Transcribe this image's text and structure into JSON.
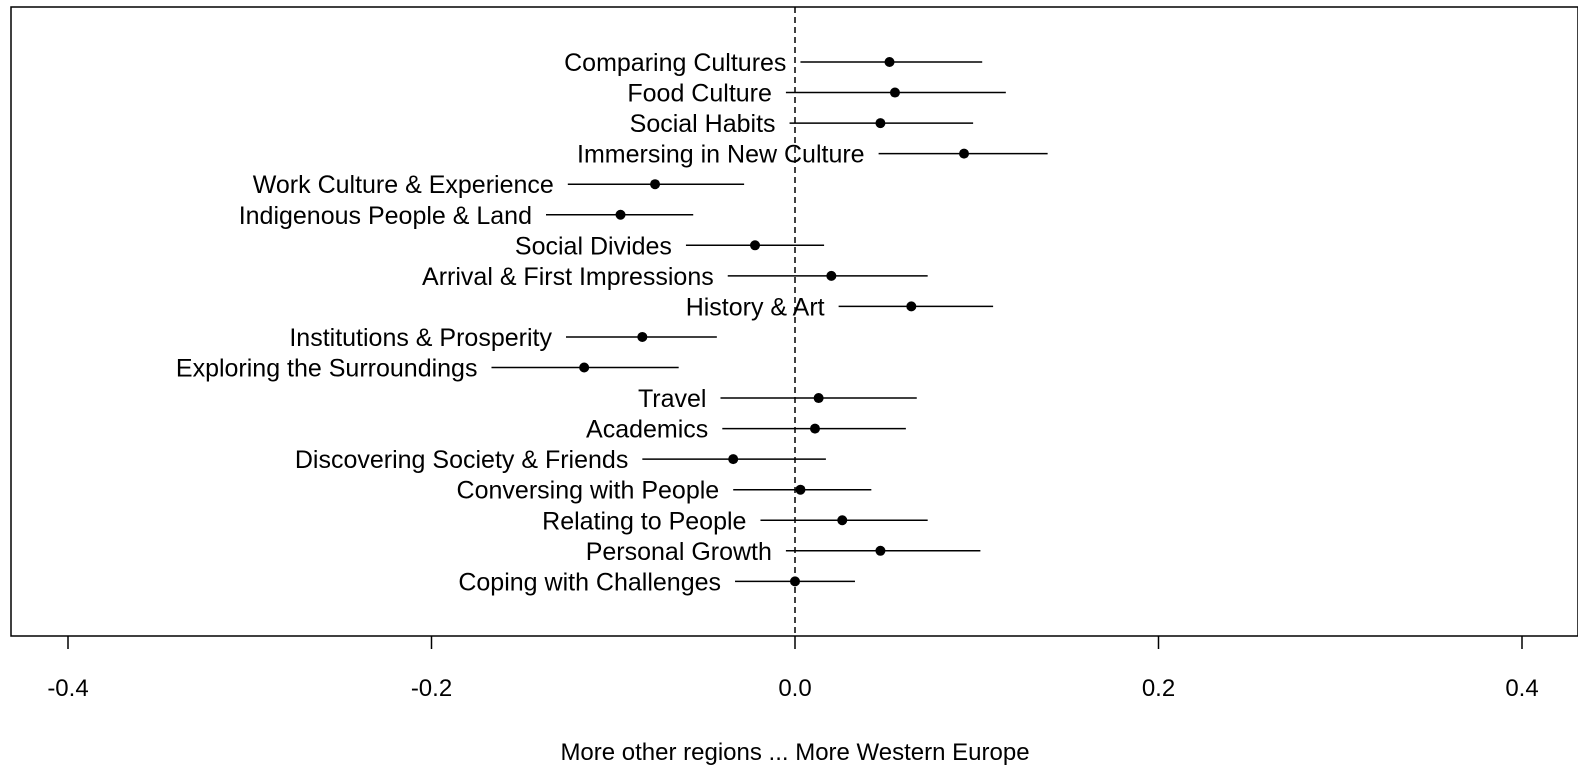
{
  "chart_data": {
    "type": "scatter",
    "subtype": "forest-plot",
    "title": "",
    "xlabel": "More other regions ... More Western Europe",
    "ylabel": "",
    "xlim": [
      -0.4,
      0.4
    ],
    "x_ticks": [
      -0.4,
      -0.2,
      0.0,
      0.2,
      0.4
    ],
    "x_tick_labels": [
      "-0.4",
      "-0.2",
      "0.0",
      "0.2",
      "0.4"
    ],
    "reference_line": 0.0,
    "reference_line_style": "dashed",
    "grid": false,
    "legend": "none",
    "colors": {
      "marks": "#000000",
      "background": "#ffffff"
    },
    "points": [
      {
        "label": "Comparing Cultures",
        "estimate": 0.052,
        "lower": 0.003,
        "upper": 0.103
      },
      {
        "label": "Food Culture",
        "estimate": 0.055,
        "lower": -0.005,
        "upper": 0.116
      },
      {
        "label": "Social Habits",
        "estimate": 0.047,
        "lower": -0.003,
        "upper": 0.098
      },
      {
        "label": "Immersing in New Culture",
        "estimate": 0.093,
        "lower": 0.046,
        "upper": 0.139
      },
      {
        "label": "Work Culture & Experience",
        "estimate": -0.077,
        "lower": -0.125,
        "upper": -0.028
      },
      {
        "label": "Indigenous People & Land",
        "estimate": -0.096,
        "lower": -0.137,
        "upper": -0.056
      },
      {
        "label": "Social Divides",
        "estimate": -0.022,
        "lower": -0.06,
        "upper": 0.016
      },
      {
        "label": "Arrival & First Impressions",
        "estimate": 0.02,
        "lower": -0.037,
        "upper": 0.073
      },
      {
        "label": "History & Art",
        "estimate": 0.064,
        "lower": 0.024,
        "upper": 0.109
      },
      {
        "label": "Institutions & Prosperity",
        "estimate": -0.084,
        "lower": -0.126,
        "upper": -0.043
      },
      {
        "label": "Exploring the Surroundings",
        "estimate": -0.116,
        "lower": -0.167,
        "upper": -0.064
      },
      {
        "label": "Travel",
        "estimate": 0.013,
        "lower": -0.041,
        "upper": 0.067
      },
      {
        "label": "Academics",
        "estimate": 0.011,
        "lower": -0.04,
        "upper": 0.061
      },
      {
        "label": "Discovering Society & Friends",
        "estimate": -0.034,
        "lower": -0.084,
        "upper": 0.017
      },
      {
        "label": "Conversing with People",
        "estimate": 0.003,
        "lower": -0.034,
        "upper": 0.042
      },
      {
        "label": "Relating to People",
        "estimate": 0.026,
        "lower": -0.019,
        "upper": 0.073
      },
      {
        "label": "Personal Growth",
        "estimate": 0.047,
        "lower": -0.005,
        "upper": 0.102
      },
      {
        "label": "Coping with Challenges",
        "estimate": 0.0,
        "lower": -0.033,
        "upper": 0.033
      }
    ]
  }
}
